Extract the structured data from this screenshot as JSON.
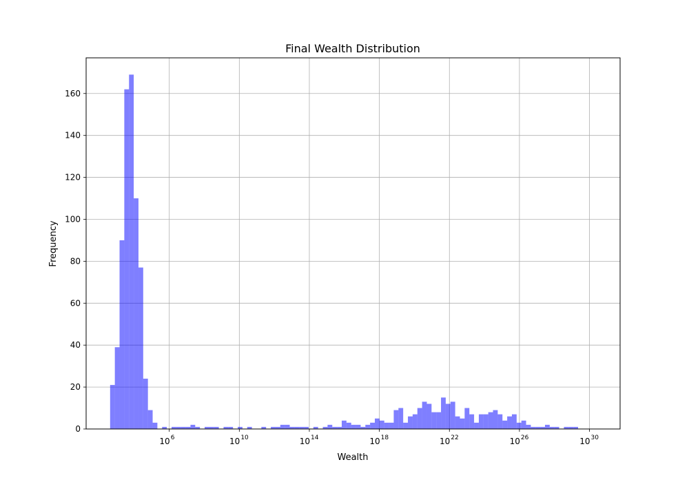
{
  "chart_data": {
    "type": "bar",
    "title": "Final Wealth Distribution",
    "xlabel": "Wealth",
    "ylabel": "Frequency",
    "xscale": "log10",
    "xlim_log10": [
      1.25,
      31.75
    ],
    "ylim": [
      0,
      177
    ],
    "grid": true,
    "bar_color": "#0000ff",
    "bar_alpha": 0.5,
    "bin_width_log10": 0.27,
    "first_bin_log10": 2.62,
    "counts": [
      21,
      39,
      90,
      162,
      169,
      110,
      77,
      24,
      9,
      3,
      0,
      1,
      0,
      1,
      1,
      1,
      1,
      2,
      1,
      0,
      1,
      1,
      1,
      0,
      1,
      1,
      0,
      1,
      0,
      1,
      0,
      0,
      1,
      0,
      1,
      1,
      2,
      2,
      1,
      1,
      1,
      1,
      0,
      1,
      0,
      1,
      2,
      1,
      1,
      4,
      3,
      2,
      2,
      1,
      2,
      3,
      5,
      4,
      3,
      3,
      9,
      10,
      3,
      6,
      7,
      10,
      13,
      12,
      8,
      8,
      15,
      12,
      13,
      6,
      5,
      10,
      7,
      3,
      7,
      7,
      8,
      9,
      7,
      4,
      6,
      7,
      3,
      4,
      2,
      1,
      1,
      1,
      2,
      1,
      1,
      0,
      1,
      1,
      1
    ],
    "yticks": [
      0,
      20,
      40,
      60,
      80,
      100,
      120,
      140,
      160
    ],
    "xticks": [
      {
        "base": "10",
        "exp": "6",
        "log10": 6
      },
      {
        "base": "10",
        "exp": "10",
        "log10": 10
      },
      {
        "base": "10",
        "exp": "14",
        "log10": 14
      },
      {
        "base": "10",
        "exp": "18",
        "log10": 18
      },
      {
        "base": "10",
        "exp": "22",
        "log10": 22
      },
      {
        "base": "10",
        "exp": "26",
        "log10": 26
      },
      {
        "base": "10",
        "exp": "30",
        "log10": 30
      }
    ]
  }
}
